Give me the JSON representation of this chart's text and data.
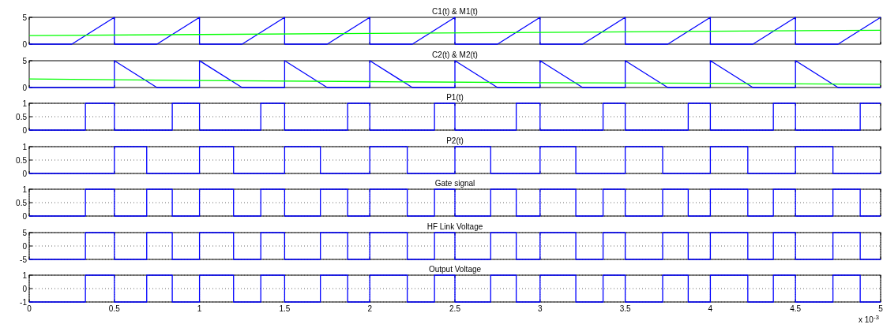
{
  "chart_data": [
    {
      "type": "line",
      "title": "C1(t) & M1(t)",
      "xlim": [
        0,
        5
      ],
      "xticks": [
        0,
        0.5,
        1,
        1.5,
        2,
        2.5,
        3,
        3.5,
        4,
        4.5,
        5
      ],
      "ylim": [
        0,
        5
      ],
      "yticks": [
        0,
        5
      ],
      "grid": false,
      "tick_labels": "y",
      "series": [
        {
          "color": "#0000ff",
          "x": [
            0,
            0.25,
            0.5,
            0.5,
            0.75,
            1,
            1,
            1.25,
            1.5,
            1.5,
            1.75,
            2,
            2,
            2.25,
            2.5,
            2.5,
            2.75,
            3,
            3,
            3.25,
            3.5,
            3.5,
            3.75,
            4,
            4,
            4.25,
            4.5,
            4.5,
            4.75,
            5
          ],
          "values": [
            0,
            0,
            5,
            0,
            0,
            5,
            0,
            0,
            5,
            0,
            0,
            5,
            0,
            0,
            5,
            0,
            0,
            5,
            0,
            0,
            5,
            0,
            0,
            5,
            0,
            0,
            5,
            0,
            0,
            5
          ]
        },
        {
          "color": "#00ff00",
          "x": [
            0,
            1,
            2,
            3,
            4,
            5
          ],
          "values": [
            1.6,
            1.8,
            2.0,
            2.2,
            2.4,
            2.6
          ]
        }
      ]
    },
    {
      "type": "line",
      "title": "C2(t) & M2(t)",
      "xlim": [
        0,
        5
      ],
      "xticks": [
        0,
        0.5,
        1,
        1.5,
        2,
        2.5,
        3,
        3.5,
        4,
        4.5,
        5
      ],
      "ylim": [
        0,
        5
      ],
      "yticks": [
        0,
        5
      ],
      "grid": false,
      "tick_labels": "y",
      "series": [
        {
          "color": "#0000ff",
          "x": [
            0,
            0.5,
            0.5,
            0.75,
            1,
            1,
            1.25,
            1.5,
            1.5,
            1.75,
            2,
            2,
            2.25,
            2.5,
            2.5,
            2.75,
            3,
            3,
            3.25,
            3.5,
            3.5,
            3.75,
            4,
            4,
            4.25,
            4.5,
            4.5,
            4.75,
            5
          ],
          "values": [
            0,
            0,
            5,
            0,
            0,
            5,
            0,
            0,
            5,
            0,
            0,
            5,
            0,
            0,
            5,
            0,
            0,
            5,
            0,
            0,
            5,
            0,
            0,
            5,
            0,
            0,
            5,
            0,
            0
          ]
        },
        {
          "color": "#00ff00",
          "x": [
            0,
            1,
            2,
            3,
            4,
            5
          ],
          "values": [
            1.6,
            1.3,
            1.1,
            0.9,
            0.8,
            0.6
          ]
        }
      ]
    },
    {
      "type": "line",
      "title": "P1(t)",
      "xlim": [
        0,
        5
      ],
      "xticks": [
        0,
        0.5,
        1,
        1.5,
        2,
        2.5,
        3,
        3.5,
        4,
        4.5,
        5
      ],
      "ylim": [
        0,
        1
      ],
      "yticks": [
        0,
        0.5,
        1
      ],
      "grid": "y",
      "tick_labels": "y",
      "series": [
        {
          "color": "#0000ff",
          "x": [
            0,
            0.33,
            0.33,
            0.5,
            0.5,
            0.84,
            0.84,
            1,
            1,
            1.36,
            1.36,
            1.5,
            1.5,
            1.87,
            1.87,
            2,
            2,
            2.38,
            2.38,
            2.5,
            2.5,
            2.86,
            2.86,
            3,
            3,
            3.37,
            3.37,
            3.5,
            3.5,
            3.87,
            3.87,
            4,
            4,
            4.37,
            4.37,
            4.5,
            4.5,
            4.88,
            4.88,
            5
          ],
          "values": [
            0,
            0,
            1,
            1,
            0,
            0,
            1,
            1,
            0,
            0,
            1,
            1,
            0,
            0,
            1,
            1,
            0,
            0,
            1,
            1,
            0,
            0,
            1,
            1,
            0,
            0,
            1,
            1,
            0,
            0,
            1,
            1,
            0,
            0,
            1,
            1,
            0,
            0,
            1,
            1
          ]
        }
      ]
    },
    {
      "type": "line",
      "title": "P2(t)",
      "xlim": [
        0,
        5
      ],
      "xticks": [
        0,
        0.5,
        1,
        1.5,
        2,
        2.5,
        3,
        3.5,
        4,
        4.5,
        5
      ],
      "ylim": [
        0,
        1
      ],
      "yticks": [
        0,
        0.5,
        1
      ],
      "grid": "y",
      "tick_labels": "y",
      "series": [
        {
          "color": "#0000ff",
          "x": [
            0,
            0.5,
            0.5,
            0.69,
            0.69,
            1,
            1,
            1.2,
            1.2,
            1.5,
            1.5,
            1.71,
            1.71,
            2,
            2,
            2.22,
            2.22,
            2.5,
            2.5,
            2.71,
            2.71,
            3,
            3,
            3.21,
            3.21,
            3.5,
            3.5,
            3.72,
            3.72,
            4,
            4,
            4.22,
            4.22,
            4.5,
            4.5,
            4.72,
            4.72,
            5
          ],
          "values": [
            0,
            0,
            1,
            1,
            0,
            0,
            1,
            1,
            0,
            0,
            1,
            1,
            0,
            0,
            1,
            1,
            0,
            0,
            1,
            1,
            0,
            0,
            1,
            1,
            0,
            0,
            1,
            1,
            0,
            0,
            1,
            1,
            0,
            0,
            1,
            1,
            0,
            0
          ]
        }
      ]
    },
    {
      "type": "line",
      "title": "Gate signal",
      "xlim": [
        0,
        5
      ],
      "xticks": [
        0,
        0.5,
        1,
        1.5,
        2,
        2.5,
        3,
        3.5,
        4,
        4.5,
        5
      ],
      "ylim": [
        0,
        1
      ],
      "yticks": [
        0,
        0.5,
        1
      ],
      "grid": true,
      "tick_labels": "y",
      "series": [
        {
          "color": "#0000ff",
          "x": [
            0,
            0.33,
            0.33,
            0.5,
            0.5,
            0.69,
            0.69,
            0.84,
            0.84,
            1,
            1,
            1.2,
            1.2,
            1.36,
            1.36,
            1.5,
            1.5,
            1.71,
            1.71,
            1.87,
            1.87,
            2,
            2,
            2.22,
            2.22,
            2.38,
            2.38,
            2.5,
            2.5,
            2.71,
            2.71,
            2.86,
            2.86,
            3,
            3,
            3.21,
            3.21,
            3.37,
            3.37,
            3.5,
            3.5,
            3.72,
            3.72,
            3.87,
            3.87,
            4,
            4,
            4.22,
            4.22,
            4.37,
            4.37,
            4.5,
            4.5,
            4.72,
            4.72,
            4.88,
            4.88,
            5
          ],
          "values": [
            0,
            0,
            1,
            1,
            0,
            0,
            1,
            1,
            0,
            0,
            1,
            1,
            0,
            0,
            1,
            1,
            0,
            0,
            1,
            1,
            0,
            0,
            1,
            1,
            0,
            0,
            1,
            1,
            0,
            0,
            1,
            1,
            0,
            0,
            1,
            1,
            0,
            0,
            1,
            1,
            0,
            0,
            1,
            1,
            0,
            0,
            1,
            1,
            0,
            0,
            1,
            1,
            0,
            0,
            1,
            1,
            0,
            0
          ]
        }
      ]
    },
    {
      "type": "line",
      "title": "HF Link Voltage",
      "xlim": [
        0,
        5
      ],
      "xticks": [
        0,
        0.5,
        1,
        1.5,
        2,
        2.5,
        3,
        3.5,
        4,
        4.5,
        5
      ],
      "ylim": [
        -5,
        5
      ],
      "yticks": [
        -5,
        0,
        5
      ],
      "grid": true,
      "tick_labels": "y",
      "series": [
        {
          "color": "#0000ff",
          "x": [
            0,
            0.33,
            0.33,
            0.5,
            0.5,
            0.69,
            0.69,
            0.84,
            0.84,
            1,
            1,
            1.2,
            1.2,
            1.36,
            1.36,
            1.5,
            1.5,
            1.71,
            1.71,
            1.87,
            1.87,
            2,
            2,
            2.22,
            2.22,
            2.38,
            2.38,
            2.5,
            2.5,
            2.71,
            2.71,
            2.86,
            2.86,
            3,
            3,
            3.21,
            3.21,
            3.37,
            3.37,
            3.5,
            3.5,
            3.72,
            3.72,
            3.87,
            3.87,
            4,
            4,
            4.22,
            4.22,
            4.37,
            4.37,
            4.5,
            4.5,
            4.72,
            4.72,
            4.88,
            4.88,
            5
          ],
          "values": [
            -5,
            -5,
            5,
            5,
            -5,
            -5,
            5,
            5,
            -5,
            -5,
            5,
            5,
            -5,
            -5,
            5,
            5,
            -5,
            -5,
            5,
            5,
            -5,
            -5,
            5,
            5,
            -5,
            -5,
            5,
            5,
            -5,
            -5,
            5,
            5,
            -5,
            -5,
            5,
            5,
            -5,
            -5,
            5,
            5,
            -5,
            -5,
            5,
            5,
            -5,
            -5,
            5,
            5,
            -5,
            -5,
            5,
            5,
            -5,
            -5,
            5,
            5,
            -5,
            -5
          ]
        }
      ]
    },
    {
      "type": "line",
      "title": "Output Voltage",
      "xlim": [
        0,
        5
      ],
      "xticks": [
        0,
        0.5,
        1,
        1.5,
        2,
        2.5,
        3,
        3.5,
        4,
        4.5,
        5
      ],
      "ylim": [
        -1,
        1
      ],
      "yticks": [
        -1,
        0,
        1
      ],
      "grid": true,
      "annotations": [
        "x 10$^{-3}$"
      ],
      "series": [
        {
          "color": "#0000ff",
          "x": [
            0,
            0.33,
            0.33,
            0.5,
            0.5,
            0.69,
            0.69,
            0.84,
            0.84,
            1,
            1,
            1.2,
            1.2,
            1.36,
            1.36,
            1.5,
            1.5,
            1.71,
            1.71,
            1.87,
            1.87,
            2,
            2,
            2.22,
            2.22,
            2.38,
            2.38,
            2.5,
            2.5,
            2.71,
            2.71,
            2.86,
            2.86,
            3,
            3,
            3.21,
            3.21,
            3.37,
            3.37,
            3.5,
            3.5,
            3.72,
            3.72,
            3.87,
            3.87,
            4,
            4,
            4.22,
            4.22,
            4.37,
            4.37,
            4.5,
            4.5,
            4.72,
            4.72,
            4.88,
            4.88,
            5
          ],
          "values": [
            -1,
            -1,
            1,
            1,
            -1,
            -1,
            1,
            1,
            -1,
            -1,
            1,
            1,
            -1,
            -1,
            1,
            1,
            -1,
            -1,
            1,
            1,
            -1,
            -1,
            1,
            1,
            -1,
            -1,
            1,
            1,
            -1,
            -1,
            1,
            1,
            -1,
            -1,
            1,
            1,
            -1,
            -1,
            1,
            1,
            -1,
            -1,
            1,
            1,
            -1,
            -1,
            1,
            1,
            -1,
            -1,
            1,
            1,
            -1,
            -1,
            1,
            1,
            -1,
            -1
          ]
        }
      ]
    }
  ]
}
